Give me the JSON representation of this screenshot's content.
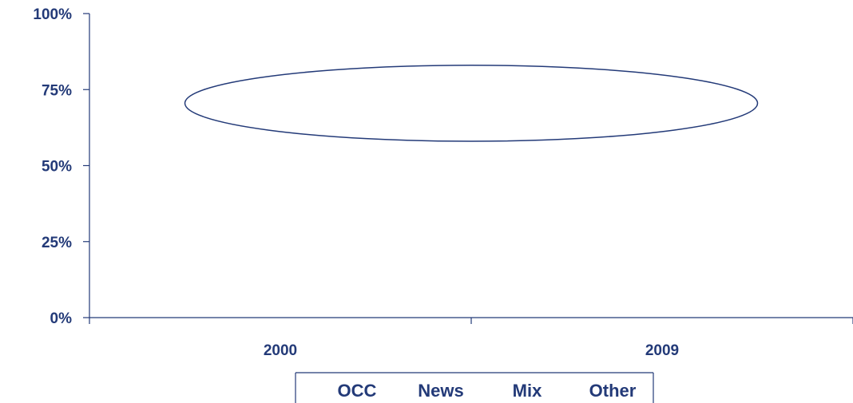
{
  "chart_data": {
    "type": "bar",
    "categories": [
      "2000",
      "2009"
    ],
    "y_tick_labels": [
      "0%",
      "25%",
      "50%",
      "75%",
      "100%"
    ],
    "y_ticks": [
      0,
      25,
      50,
      75,
      100
    ],
    "ylim": [
      0,
      100
    ],
    "legend": {
      "placement": "bottom",
      "entries": [
        "OCC",
        "News",
        "Mix",
        "Other"
      ]
    },
    "annotation": {
      "shape": "ellipse",
      "x_range": [
        -0.25,
        1.25
      ],
      "y_range": [
        58,
        83
      ]
    },
    "grid": false,
    "colors": {
      "axis": "#233a78",
      "text": "#233a78"
    }
  }
}
